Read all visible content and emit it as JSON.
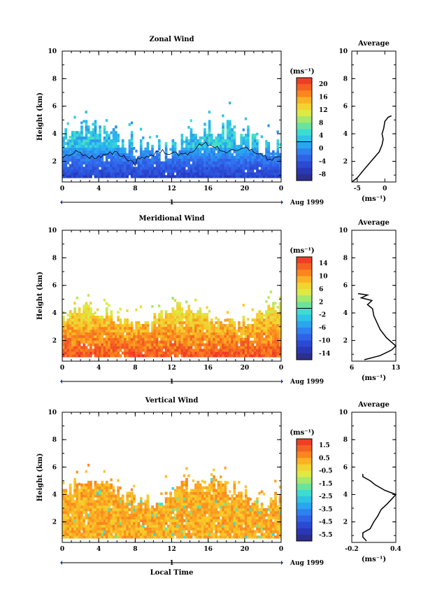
{
  "chart_data": [
    {
      "type": "heatmap",
      "title": "Zonal Wind",
      "ylabel": "Height (km)",
      "xlabel": "",
      "ylim": [
        0.5,
        10
      ],
      "xlim": [
        0,
        24
      ],
      "yticks": [
        "2",
        "4",
        "6",
        "8",
        "10"
      ],
      "xticks": [
        "0",
        "4",
        "8",
        "12",
        "16",
        "20",
        "0"
      ],
      "day_label": "1",
      "date_label": "Aug 1999",
      "colorbar": {
        "unit": "(ms⁻¹)",
        "ticks": [
          "20",
          "16",
          "12",
          "8",
          "4",
          "0",
          "-4",
          "-8"
        ],
        "range": [
          -10,
          22
        ]
      },
      "contour": "0",
      "profile": {
        "title": "Average",
        "xlabel": "(ms⁻¹)",
        "xticks": [
          "-5",
          "0"
        ],
        "xlim": [
          -6,
          2
        ],
        "yticks": [
          "2",
          "4",
          "6",
          "8",
          "10"
        ],
        "points": [
          [
            -6,
            0.5
          ],
          [
            -5,
            0.8
          ],
          [
            -4,
            1.3
          ],
          [
            -2.5,
            2.0
          ],
          [
            -1,
            2.7
          ],
          [
            -0.5,
            3.2
          ],
          [
            -0.3,
            3.6
          ],
          [
            -0.5,
            4.0
          ],
          [
            -0.2,
            4.4
          ],
          [
            0,
            4.9
          ],
          [
            0.6,
            5.2
          ],
          [
            1.2,
            5.3
          ]
        ]
      }
    },
    {
      "type": "heatmap",
      "title": "Meridional Wind",
      "ylabel": "Height (km)",
      "xlabel": "",
      "ylim": [
        0.5,
        10
      ],
      "xlim": [
        0,
        24
      ],
      "yticks": [
        "2",
        "4",
        "6",
        "8",
        "10"
      ],
      "xticks": [
        "0",
        "4",
        "8",
        "12",
        "16",
        "20",
        "0"
      ],
      "day_label": "1",
      "date_label": "Aug 1999",
      "colorbar": {
        "unit": "(ms⁻¹)",
        "ticks": [
          "14",
          "10",
          "6",
          "2",
          "-2",
          "-6",
          "-10",
          "-14"
        ],
        "range": [
          -16,
          16
        ]
      },
      "profile": {
        "title": "Average",
        "xlabel": "(ms⁻¹)",
        "xticks": [
          "6",
          "13"
        ],
        "xlim": [
          6,
          13
        ],
        "yticks": [
          "2",
          "4",
          "6",
          "8",
          "10"
        ],
        "points": [
          [
            8.0,
            0.6
          ],
          [
            10.5,
            0.9
          ],
          [
            12.3,
            1.3
          ],
          [
            13,
            1.6
          ],
          [
            11.5,
            2.2
          ],
          [
            10.5,
            2.8
          ],
          [
            10.0,
            3.3
          ],
          [
            9.5,
            3.8
          ],
          [
            9.3,
            4.3
          ],
          [
            8.5,
            4.6
          ],
          [
            9.2,
            4.9
          ],
          [
            7.5,
            5.1
          ],
          [
            8.5,
            5.3
          ],
          [
            7.0,
            5.4
          ]
        ]
      }
    },
    {
      "type": "heatmap",
      "title": "Vertical Wind",
      "ylabel": "Height (km)",
      "xlabel": "Local Time",
      "ylim": [
        0.5,
        10
      ],
      "xlim": [
        0,
        24
      ],
      "yticks": [
        "2",
        "4",
        "6",
        "8",
        "10"
      ],
      "xticks": [
        "0",
        "4",
        "8",
        "12",
        "16",
        "20",
        "0"
      ],
      "day_label": "1",
      "date_label": "Aug 1999",
      "colorbar": {
        "unit": "(ms⁻¹)",
        "ticks": [
          "1.5",
          "0.5",
          "-0.5",
          "-1.5",
          "-2.5",
          "-3.5",
          "-4.5",
          "-5.5"
        ],
        "range": [
          -6,
          2
        ]
      },
      "profile": {
        "title": "Average",
        "xlabel": "(ms⁻¹)",
        "xticks": [
          "-0.2",
          "0.4"
        ],
        "xlim": [
          -0.2,
          0.4
        ],
        "yticks": [
          "2",
          "4",
          "6",
          "8",
          "10"
        ],
        "points": [
          [
            0.0,
            0.6
          ],
          [
            -0.05,
            0.9
          ],
          [
            -0.05,
            1.2
          ],
          [
            0.05,
            1.5
          ],
          [
            0.1,
            2.0
          ],
          [
            0.15,
            2.4
          ],
          [
            0.2,
            2.9
          ],
          [
            0.28,
            3.3
          ],
          [
            0.35,
            3.7
          ],
          [
            0.4,
            4.0
          ],
          [
            0.25,
            4.3
          ],
          [
            0.12,
            4.7
          ],
          [
            0.05,
            5.0
          ],
          [
            -0.05,
            5.3
          ],
          [
            -0.05,
            5.5
          ]
        ]
      }
    }
  ]
}
